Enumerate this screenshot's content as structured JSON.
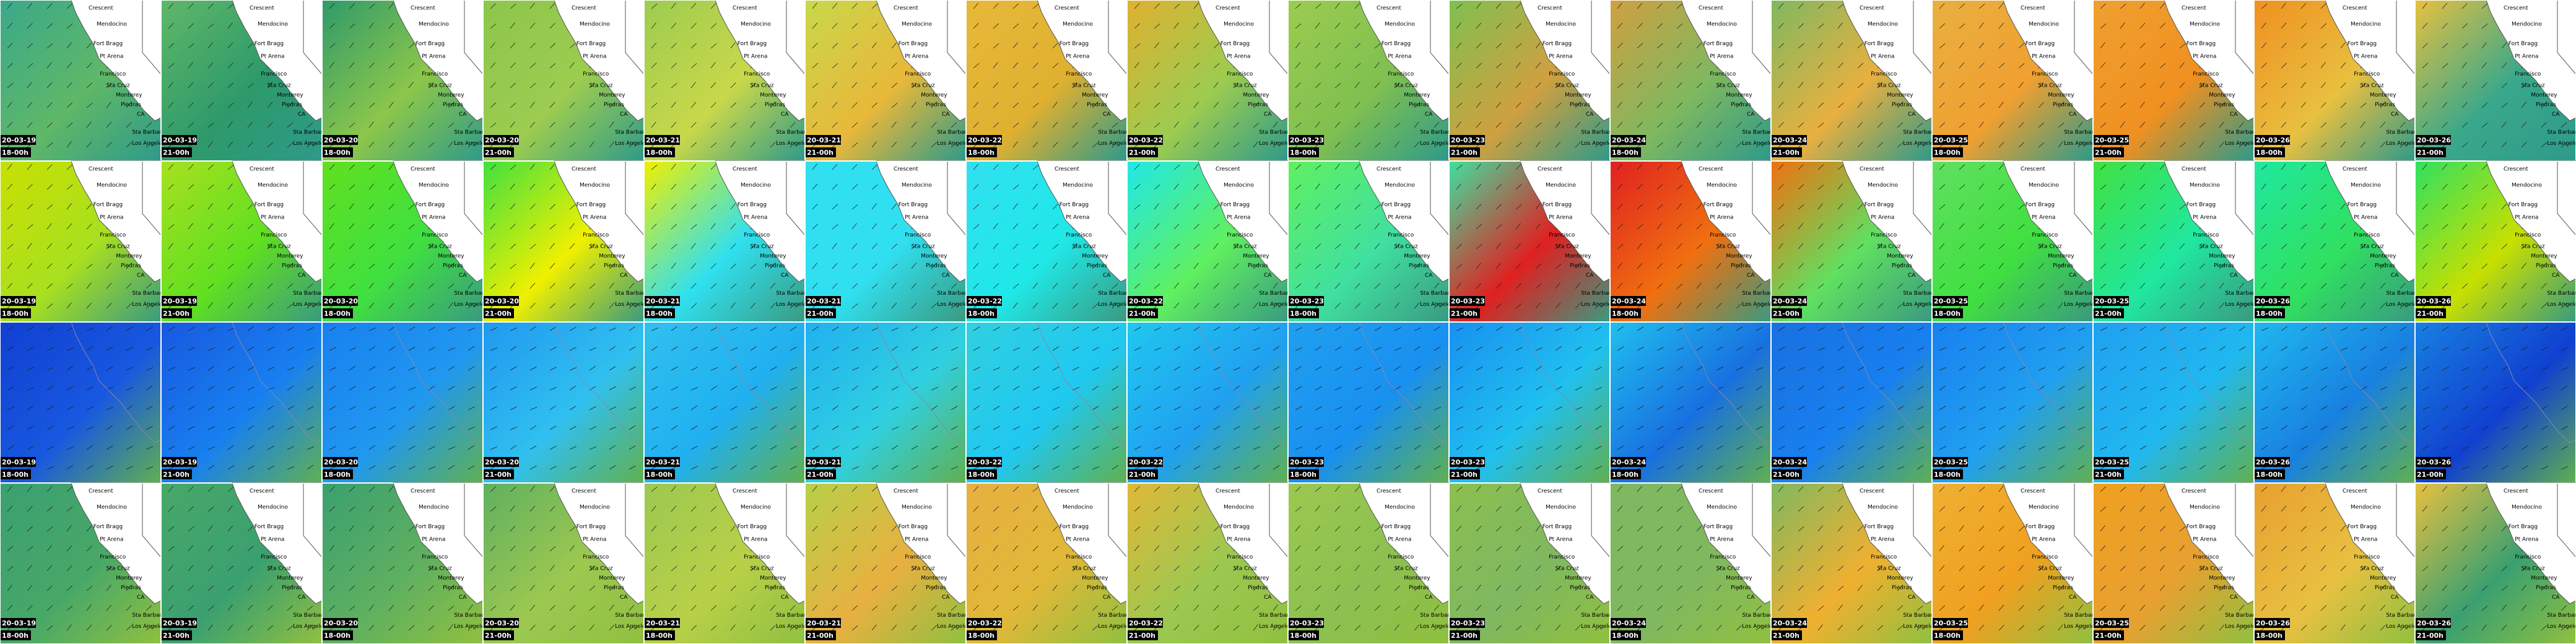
{
  "columns": [
    {
      "date": "20-03-19",
      "time": "18-00h"
    },
    {
      "date": "20-03-19",
      "time": "21-00h"
    },
    {
      "date": "20-03-20",
      "time": "18-00h"
    },
    {
      "date": "20-03-20",
      "time": "21-00h"
    },
    {
      "date": "20-03-21",
      "time": "18-00h"
    },
    {
      "date": "20-03-21",
      "time": "21-00h"
    },
    {
      "date": "20-03-22",
      "time": "18-00h"
    },
    {
      "date": "20-03-22",
      "time": "21-00h"
    },
    {
      "date": "20-03-23",
      "time": "18-00h"
    },
    {
      "date": "20-03-23",
      "time": "21-00h"
    },
    {
      "date": "20-03-24",
      "time": "18-00h"
    },
    {
      "date": "20-03-24",
      "time": "21-00h"
    },
    {
      "date": "20-03-25",
      "time": "18-00h"
    },
    {
      "date": "20-03-25",
      "time": "21-00h"
    },
    {
      "date": "20-03-26",
      "time": "18-00h"
    },
    {
      "date": "20-03-26",
      "time": "21-00h"
    }
  ],
  "places": [
    "Crescent",
    "Mendocino",
    "Fort Bragg",
    "Pt Arena",
    "Francisco",
    "Sta Cruz",
    "Monterey",
    "CA",
    "Piedras",
    "Sta Barbara",
    "Los Angeles"
  ]
}
